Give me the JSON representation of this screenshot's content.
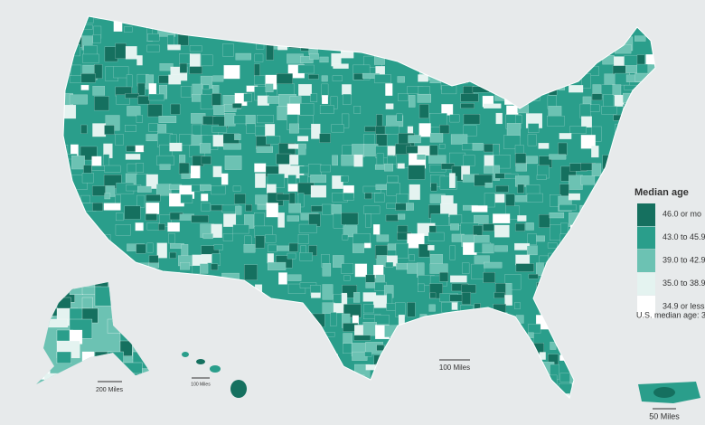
{
  "legend": {
    "title": "Median age",
    "items": [
      {
        "label": "46.0 or mo",
        "color": "#15705f"
      },
      {
        "label": "43.0 to 45.9",
        "color": "#2a9e8b"
      },
      {
        "label": "39.0 to 42.9",
        "color": "#6cc2b3"
      },
      {
        "label": "35.0 to 38.9",
        "color": "#e4f3f0"
      },
      {
        "label": "34.9 or less",
        "color": "#ffffff"
      }
    ],
    "note": "U.S. median age: 3"
  },
  "scale_bars": {
    "lower48": "100 Miles",
    "alaska": "200 Miles",
    "hawaii": "100 Miles",
    "puerto_rico": "50 Miles"
  }
}
